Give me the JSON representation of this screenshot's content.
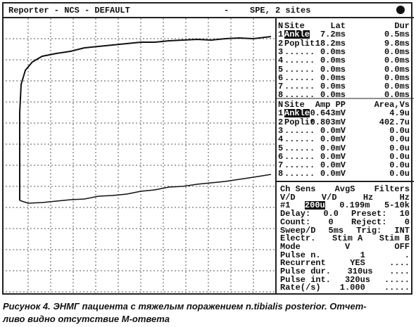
{
  "header": {
    "left": "Reporter - NCS - DEFAULT",
    "dash": "-",
    "right": "SPE, 2 sites"
  },
  "latency_table": {
    "headers": [
      "N",
      "Site",
      "Lat",
      "Dur"
    ],
    "rows": [
      [
        "1",
        "Ankle",
        "7.2ms",
        "0.5ms"
      ],
      [
        "2",
        "Poplit",
        "18.2ms",
        "9.8ms"
      ],
      [
        "3",
        "......",
        "0.0ms",
        "0.0ms"
      ],
      [
        "4",
        "......",
        "0.0ms",
        "0.0ms"
      ],
      [
        "5",
        "......",
        "0.0ms",
        "0.0ms"
      ],
      [
        "6",
        "......",
        "0.0ms",
        "0.0ms"
      ],
      [
        "7",
        "......",
        "0.0ms",
        "0.0ms"
      ],
      [
        "8",
        "......",
        "0.0ms",
        "0.0ms"
      ]
    ]
  },
  "amplitude_table": {
    "headers": [
      "N",
      "Site",
      "Amp PP",
      "Area,Vs"
    ],
    "rows": [
      [
        "1",
        "Ankle",
        "0.643mV",
        "4.9u"
      ],
      [
        "2",
        "Poplit",
        "0.803mV",
        "402.7u"
      ],
      [
        "3",
        "......",
        "0.0mV",
        "0.0u"
      ],
      [
        "4",
        "......",
        "0.0mV",
        "0.0u"
      ],
      [
        "5",
        "......",
        "0.0mV",
        "0.0u"
      ],
      [
        "6",
        "......",
        "0.0mV",
        "0.0u"
      ],
      [
        "7",
        "......",
        "0.0mV",
        "0.0u"
      ],
      [
        "8",
        "......",
        "0.0mV",
        "0.0u"
      ]
    ]
  },
  "settings": [
    [
      "Ch Sens",
      "AvgS",
      "Filters"
    ],
    [
      "V/D",
      "V/D",
      "Hz",
      "Hz"
    ],
    [
      "#1",
      "200u",
      "0.199m",
      "5-10k"
    ],
    [
      "Delay:",
      "0.0",
      "Preset:",
      "10"
    ],
    [
      "Count:",
      "0",
      "Reject:",
      "0"
    ],
    [
      "Sweep/D",
      "5ms",
      "Trig:",
      "INT"
    ],
    [
      "Electr.",
      "Stim A",
      "Stim B"
    ],
    [
      "Mode",
      "V",
      "OFF"
    ],
    [
      "Pulse n.",
      "1",
      "."
    ],
    [
      "Recurrent",
      "YES",
      "...."
    ],
    [
      "Pulse dur.",
      "310us",
      "...."
    ],
    [
      "Pulse int.",
      "320us",
      "....."
    ],
    [
      "Rate(/s)",
      "1.000",
      "....."
    ]
  ],
  "caption": [
    "Рисунок 4. ЭНМГ пациента с тяжелым поражением n.tibialis posterior. Отчет-",
    "ливо видно отсутствие М-ответа"
  ]
}
